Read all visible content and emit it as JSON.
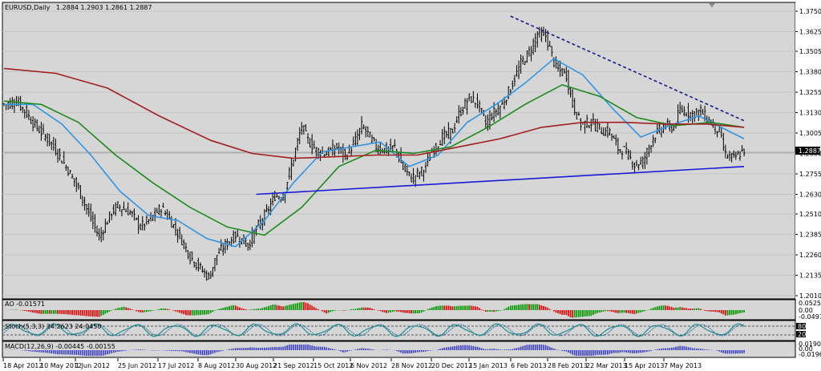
{
  "chart_data": {
    "type": "candlestick",
    "title": "EURUSD,Daily",
    "ohlc_header": "1.2884 1.2903 1.2861 1.2887",
    "symbol": "EURUSD",
    "timeframe": "Daily",
    "last_price": "1.2887",
    "price_axis_labels": [
      "1.3750",
      "1.3625",
      "1.3505",
      "1.3380",
      "1.3255",
      "1.3130",
      "1.3005",
      "1.2880",
      "1.2755",
      "1.2630",
      "1.2510",
      "1.2385",
      "1.2260",
      "1.2135",
      "1.2010"
    ],
    "ylim": [
      1.201,
      1.375
    ],
    "date_labels": [
      "18 Apr 2012",
      "10 May 2012",
      "1 Jun 2012",
      "25 Jun 2012",
      "17 Jul 2012",
      "8 Aug 2012",
      "30 Aug 2012",
      "21 Sep 2012",
      "15 Oct 2012",
      "6 Nov 2012",
      "28 Nov 2012",
      "20 Dec 2012",
      "15 Jan 2013",
      "6 Feb 2013",
      "28 Feb 2013",
      "22 Mar 2013",
      "15 Apr 2013",
      "7 May 2013"
    ],
    "close_path": [
      [
        0,
        1.318
      ],
      [
        6,
        1.32
      ],
      [
        10,
        1.314
      ],
      [
        15,
        1.305
      ],
      [
        21,
        1.297
      ],
      [
        25,
        1.29
      ],
      [
        31,
        1.278
      ],
      [
        36,
        1.266
      ],
      [
        41,
        1.251
      ],
      [
        46,
        1.237
      ],
      [
        52,
        1.252
      ],
      [
        55,
        1.256
      ],
      [
        61,
        1.252
      ],
      [
        66,
        1.243
      ],
      [
        71,
        1.248
      ],
      [
        76,
        1.255
      ],
      [
        80,
        1.248
      ],
      [
        86,
        1.235
      ],
      [
        90,
        1.225
      ],
      [
        94,
        1.219
      ],
      [
        99,
        1.212
      ],
      [
        103,
        1.226
      ],
      [
        107,
        1.232
      ],
      [
        112,
        1.238
      ],
      [
        118,
        1.232
      ],
      [
        123,
        1.244
      ],
      [
        127,
        1.252
      ],
      [
        131,
        1.262
      ],
      [
        135,
        1.262
      ],
      [
        141,
        1.29
      ],
      [
        144,
        1.305
      ],
      [
        147,
        1.296
      ],
      [
        151,
        1.29
      ],
      [
        156,
        1.288
      ],
      [
        161,
        1.292
      ],
      [
        165,
        1.286
      ],
      [
        170,
        1.296
      ],
      [
        173,
        1.305
      ],
      [
        176,
        1.3
      ],
      [
        180,
        1.292
      ],
      [
        185,
        1.29
      ],
      [
        189,
        1.292
      ],
      [
        193,
        1.279
      ],
      [
        197,
        1.273
      ],
      [
        203,
        1.278
      ],
      [
        207,
        1.289
      ],
      [
        212,
        1.298
      ],
      [
        217,
        1.302
      ],
      [
        220,
        1.312
      ],
      [
        225,
        1.322
      ],
      [
        229,
        1.319
      ],
      [
        233,
        1.306
      ],
      [
        236,
        1.312
      ],
      [
        241,
        1.318
      ],
      [
        246,
        1.331
      ],
      [
        250,
        1.343
      ],
      [
        254,
        1.35
      ],
      [
        258,
        1.361
      ],
      [
        262,
        1.36
      ],
      [
        267,
        1.34
      ],
      [
        272,
        1.336
      ],
      [
        275,
        1.318
      ],
      [
        279,
        1.306
      ],
      [
        284,
        1.307
      ],
      [
        289,
        1.302
      ],
      [
        293,
        1.301
      ],
      [
        297,
        1.291
      ],
      [
        300,
        1.29
      ],
      [
        305,
        1.281
      ],
      [
        309,
        1.283
      ],
      [
        314,
        1.298
      ],
      [
        319,
        1.305
      ],
      [
        324,
        1.304
      ],
      [
        327,
        1.315
      ],
      [
        333,
        1.312
      ],
      [
        337,
        1.314
      ],
      [
        341,
        1.308
      ],
      [
        346,
        1.301
      ],
      [
        349,
        1.287
      ],
      [
        353,
        1.285
      ],
      [
        358,
        1.29
      ]
    ],
    "series": [
      {
        "name": "",
        "color": "#2f95e4",
        "values": [
          [
            0,
            1.318
          ],
          [
            14,
            1.318
          ],
          [
            28,
            1.306
          ],
          [
            42,
            1.287
          ],
          [
            56,
            1.265
          ],
          [
            70,
            1.25
          ],
          [
            84,
            1.247
          ],
          [
            98,
            1.236
          ],
          [
            112,
            1.231
          ],
          [
            126,
            1.247
          ],
          [
            140,
            1.27
          ],
          [
            154,
            1.289
          ],
          [
            168,
            1.292
          ],
          [
            182,
            1.295
          ],
          [
            196,
            1.28
          ],
          [
            210,
            1.287
          ],
          [
            224,
            1.307
          ],
          [
            238,
            1.318
          ],
          [
            252,
            1.331
          ],
          [
            266,
            1.346
          ],
          [
            280,
            1.336
          ],
          [
            294,
            1.316
          ],
          [
            308,
            1.298
          ],
          [
            322,
            1.305
          ],
          [
            336,
            1.311
          ],
          [
            350,
            1.302
          ],
          [
            358,
            1.297
          ]
        ]
      },
      {
        "name": "",
        "color": "#1c8b1c",
        "values": [
          [
            0,
            1.32
          ],
          [
            18,
            1.318
          ],
          [
            36,
            1.307
          ],
          [
            54,
            1.287
          ],
          [
            72,
            1.27
          ],
          [
            90,
            1.255
          ],
          [
            108,
            1.243
          ],
          [
            126,
            1.238
          ],
          [
            144,
            1.255
          ],
          [
            162,
            1.28
          ],
          [
            180,
            1.29
          ],
          [
            198,
            1.288
          ],
          [
            216,
            1.292
          ],
          [
            234,
            1.304
          ],
          [
            252,
            1.318
          ],
          [
            270,
            1.33
          ],
          [
            288,
            1.323
          ],
          [
            306,
            1.31
          ],
          [
            324,
            1.305
          ],
          [
            342,
            1.307
          ],
          [
            358,
            1.304
          ]
        ]
      },
      {
        "name": "",
        "color": "#a21f1f",
        "values": [
          [
            0,
            1.34
          ],
          [
            25,
            1.337
          ],
          [
            50,
            1.328
          ],
          [
            75,
            1.311
          ],
          [
            100,
            1.296
          ],
          [
            120,
            1.288
          ],
          [
            140,
            1.285
          ],
          [
            160,
            1.286
          ],
          [
            180,
            1.287
          ],
          [
            200,
            1.287
          ],
          [
            220,
            1.292
          ],
          [
            240,
            1.297
          ],
          [
            260,
            1.304
          ],
          [
            280,
            1.307
          ],
          [
            300,
            1.307
          ],
          [
            320,
            1.306
          ],
          [
            340,
            1.306
          ],
          [
            358,
            1.304
          ]
        ]
      }
    ],
    "trendlines": [
      {
        "color": "#1a1ad4",
        "style": "solid",
        "points": [
          [
            122,
            1.263
          ],
          [
            358,
            1.28
          ]
        ]
      },
      {
        "color": "#1a1a8c",
        "style": "dashed",
        "points": [
          [
            245,
            1.372
          ],
          [
            358,
            1.308
          ]
        ]
      }
    ],
    "indicators": [
      {
        "name": "AO",
        "label": "AO -0.01571",
        "axis_labels": [
          "0.05253",
          "0.00",
          "-0.04978"
        ],
        "type": "histogram"
      },
      {
        "name": "Stoch",
        "label": "Stoch(5,3,3) 34.2623 24.0450",
        "axis_labels": [
          "80",
          "20"
        ],
        "type": "oscillator"
      },
      {
        "name": "MACD",
        "label": "MACD(12,26,9) -0.00445 -0.00155",
        "axis_labels": [
          "0.01907",
          "0.00",
          "-0.01961"
        ],
        "type": "histogram"
      }
    ]
  }
}
